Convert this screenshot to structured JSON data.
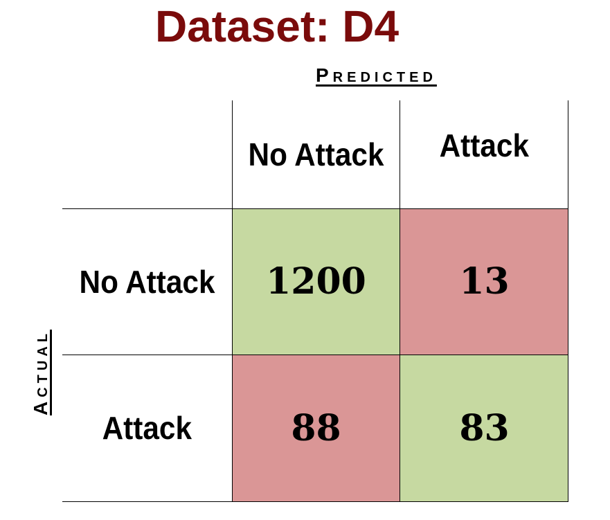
{
  "title": "Dataset: D4",
  "axes": {
    "predicted_label": "Predicted",
    "actual_label": "Actual"
  },
  "colors": {
    "title": "#7a0b0b",
    "correct": "#c6d9a1",
    "incorrect": "#da9696"
  },
  "chart_data": {
    "type": "heatmap",
    "title": "Dataset: D4",
    "xlabel": "Predicted",
    "ylabel": "Actual",
    "columns": [
      "No Attack",
      "Attack"
    ],
    "rows": [
      "No Attack",
      "Attack"
    ],
    "values": [
      [
        1200,
        13
      ],
      [
        88,
        83
      ]
    ],
    "value_labels": [
      [
        "1200",
        "13"
      ],
      [
        "88",
        "83"
      ]
    ]
  }
}
